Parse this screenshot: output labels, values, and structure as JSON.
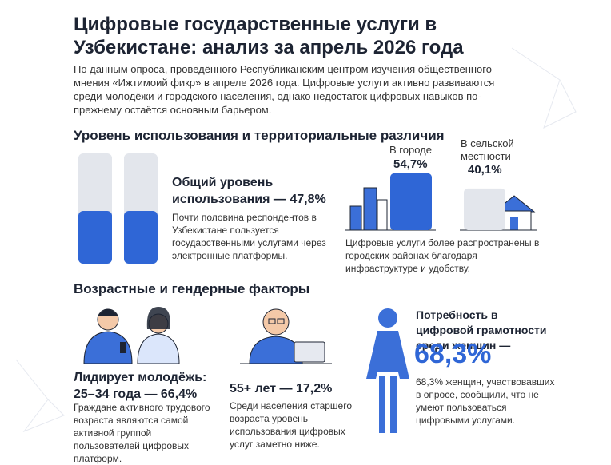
{
  "header": {
    "title": "Цифровые государственные услуги в Узбекистане: анализ за апрель 2026 года",
    "intro": "По данным опроса, проведённого Республиканским центром изучения общественного мнения «Ижтимоий фикр» в апреле 2026 года. Цифровые услуги активно развиваются среди молодёжи и городского населения, однако недостаток цифровых навыков по-прежнему остаётся основным барьером."
  },
  "usage": {
    "heading": "Уровень использования и территориальные различия",
    "overall": {
      "title": "Общий уровень использования — 47,8%",
      "value": 47.8,
      "text": "Почти половина респондентов в Узбекистане пользуется государственными услугами через электронные платформы."
    },
    "city": {
      "label": "В городе",
      "value": 54.7,
      "value_label": "54,7%"
    },
    "rural": {
      "label": "В сельской местности",
      "value": 40.1,
      "value_label": "40,1%"
    },
    "caption": "Цифровые услуги более распространены в городских районах благодаря инфраструктуре и удобству."
  },
  "demographics": {
    "heading": "Возрастные и гендерные факторы",
    "youth": {
      "title": "Лидирует молодёжь: 25–34 года — 66,4%",
      "text": "Граждане активного трудового возраста являются самой активной группой пользователей цифровых платформ."
    },
    "seniors": {
      "title": "55+ лет — 17,2%",
      "text": "Среди населения старшего возраста уровень использования цифровых услуг заметно ниже."
    },
    "women": {
      "title": "Потребность в цифровой грамотности среди женщин —",
      "figure": "68,3%",
      "text": "68,3% женщин, участвовавших в опросе, сообщили, что не умеют пользоваться цифровыми услугами."
    }
  }
}
